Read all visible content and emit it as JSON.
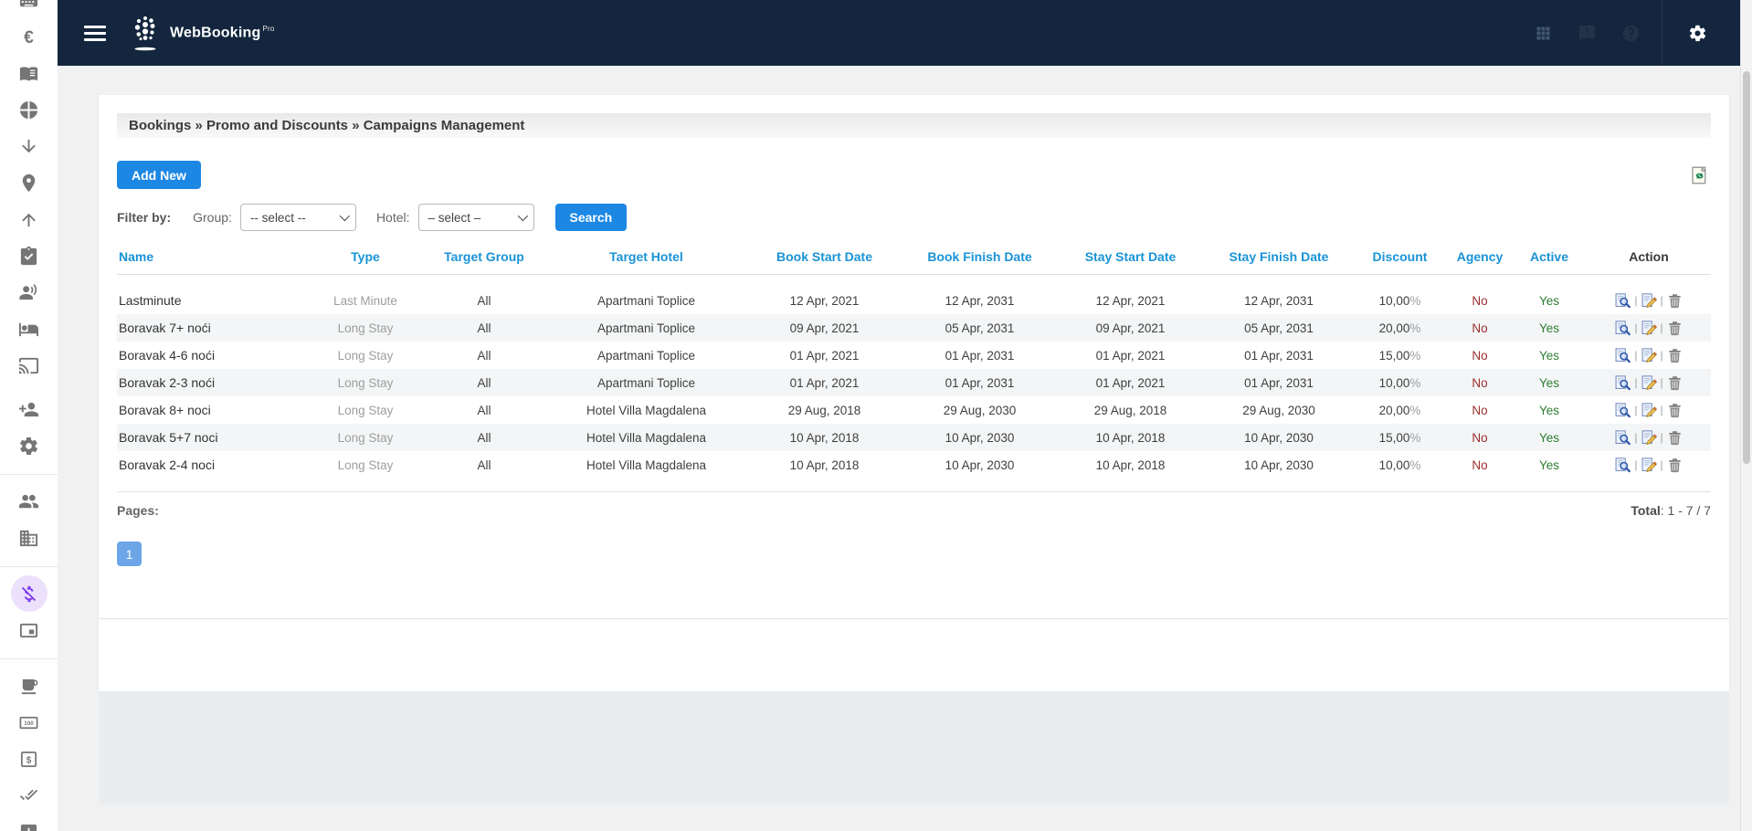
{
  "topbar": {
    "brand": "WebBooking",
    "brand_suffix": "Pro",
    "right_icons": [
      {
        "icon": "apps-grid",
        "style": "muted"
      },
      {
        "icon": "feedback",
        "style": "dark"
      },
      {
        "icon": "help",
        "style": "dark"
      },
      {
        "icon": "settings-gear",
        "style": "bright"
      }
    ]
  },
  "sidebar": {
    "items": [
      {
        "icon": "keyboard",
        "partial": true
      },
      {
        "icon": "euro"
      },
      {
        "icon": "menu-book"
      },
      {
        "icon": "pie-chart"
      },
      {
        "icon": "arrow-down"
      },
      {
        "icon": "location-pin"
      },
      {
        "icon": "arrow-up"
      },
      {
        "icon": "task-check"
      },
      {
        "icon": "voice-over"
      },
      {
        "icon": "hotel-bed"
      },
      {
        "icon": "cast"
      },
      {
        "icon": "person-add"
      },
      {
        "icon": "settings-gear"
      },
      {
        "divider": true
      },
      {
        "icon": "people"
      },
      {
        "icon": "building"
      },
      {
        "divider": true
      },
      {
        "icon": "money-off",
        "active": true
      },
      {
        "icon": "wallet-card"
      },
      {
        "divider": true
      },
      {
        "icon": "coffee-cup"
      },
      {
        "icon": "banknote-100"
      },
      {
        "icon": "dollar-box"
      },
      {
        "icon": "double-check"
      },
      {
        "icon": "plus-box"
      }
    ]
  },
  "breadcrumb": {
    "text": "Bookings » Promo and Discounts » Campaigns Management"
  },
  "toolbar": {
    "add_new_label": "Add New"
  },
  "filters": {
    "label": "Filter by:",
    "group_label": "Group:",
    "group_value": "-- select --",
    "hotel_label": "Hotel:",
    "hotel_value": "– select –",
    "search_label": "Search"
  },
  "table": {
    "columns": [
      {
        "label": "Name",
        "sortable": true
      },
      {
        "label": "Type",
        "sortable": true
      },
      {
        "label": "Target Group",
        "sortable": true
      },
      {
        "label": "Target Hotel",
        "sortable": true
      },
      {
        "label": "Book Start Date",
        "sortable": true
      },
      {
        "label": "Book Finish Date",
        "sortable": true
      },
      {
        "label": "Stay Start Date",
        "sortable": true
      },
      {
        "label": "Stay Finish Date",
        "sortable": true
      },
      {
        "label": "Discount",
        "sortable": true
      },
      {
        "label": "Agency",
        "sortable": true
      },
      {
        "label": "Active",
        "sortable": true
      },
      {
        "label": "Action",
        "sortable": false
      }
    ],
    "row_actions": [
      "preview",
      "edit",
      "delete"
    ],
    "action_separator": "|",
    "rows": [
      {
        "name": "Lastminute",
        "type": "Last Minute",
        "target_group": "All",
        "target_hotel": "Apartmani Toplice",
        "book_start": "12 Apr, 2021",
        "book_finish": "12 Apr, 2031",
        "stay_start": "12 Apr, 2021",
        "stay_finish": "12 Apr, 2031",
        "discount": "10,00%",
        "agency": "No",
        "active": "Yes"
      },
      {
        "name": "Boravak 7+ noći",
        "type": "Long Stay",
        "target_group": "All",
        "target_hotel": "Apartmani Toplice",
        "book_start": "09 Apr, 2021",
        "book_finish": "05 Apr, 2031",
        "stay_start": "09 Apr, 2021",
        "stay_finish": "05 Apr, 2031",
        "discount": "20,00%",
        "agency": "No",
        "active": "Yes"
      },
      {
        "name": "Boravak 4-6 noći",
        "type": "Long Stay",
        "target_group": "All",
        "target_hotel": "Apartmani Toplice",
        "book_start": "01 Apr, 2021",
        "book_finish": "01 Apr, 2031",
        "stay_start": "01 Apr, 2021",
        "stay_finish": "01 Apr, 2031",
        "discount": "15,00%",
        "agency": "No",
        "active": "Yes"
      },
      {
        "name": "Boravak 2-3 noći",
        "type": "Long Stay",
        "target_group": "All",
        "target_hotel": "Apartmani Toplice",
        "book_start": "01 Apr, 2021",
        "book_finish": "01 Apr, 2031",
        "stay_start": "01 Apr, 2021",
        "stay_finish": "01 Apr, 2031",
        "discount": "10,00%",
        "agency": "No",
        "active": "Yes"
      },
      {
        "name": "Boravak 8+ noci",
        "type": "Long Stay",
        "target_group": "All",
        "target_hotel": "Hotel Villa Magdalena",
        "book_start": "29 Aug, 2018",
        "book_finish": "29 Aug, 2030",
        "stay_start": "29 Aug, 2018",
        "stay_finish": "29 Aug, 2030",
        "discount": "20,00%",
        "agency": "No",
        "active": "Yes"
      },
      {
        "name": "Boravak 5+7 noci",
        "type": "Long Stay",
        "target_group": "All",
        "target_hotel": "Hotel Villa Magdalena",
        "book_start": "10 Apr, 2018",
        "book_finish": "10 Apr, 2030",
        "stay_start": "10 Apr, 2018",
        "stay_finish": "10 Apr, 2030",
        "discount": "15,00%",
        "agency": "No",
        "active": "Yes"
      },
      {
        "name": "Boravak 2-4 noci",
        "type": "Long Stay",
        "target_group": "All",
        "target_hotel": "Hotel Villa Magdalena",
        "book_start": "10 Apr, 2018",
        "book_finish": "10 Apr, 2030",
        "stay_start": "10 Apr, 2018",
        "stay_finish": "10 Apr, 2030",
        "discount": "10,00%",
        "agency": "No",
        "active": "Yes"
      }
    ]
  },
  "pagination": {
    "pages_label": "Pages:",
    "total_label": "Total",
    "total_separator": ":",
    "total_value": "1 - 7 / 7",
    "current_page": "1"
  },
  "colors": {
    "topbar_navy": "#13263e",
    "accent_blue": "#1d87e4",
    "header_link_blue": "#1a93d6",
    "agency_no_red": "#9c2e2e",
    "active_yes_green": "#2e7d32",
    "page_button_blue": "#6ca6e9",
    "sidebar_active_purple": "#7c3aed"
  }
}
